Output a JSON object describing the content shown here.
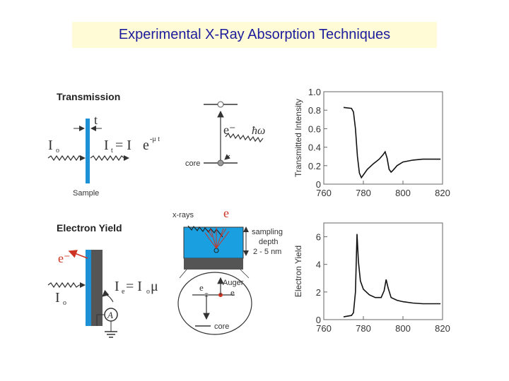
{
  "title": "Experimental X-Ray Absorption Techniques",
  "transmission": {
    "heading": "Transmission",
    "t_label": "t",
    "io_label": "I",
    "io_sub": "o",
    "it_formula_lhs": "I",
    "it_sub": "t",
    "it_formula_rhs": "= I",
    "it_formula_exp": "e",
    "it_formula_mu": "-μ t",
    "sample_label": "Sample",
    "electron_label": "e⁻",
    "photon_label": "ħω",
    "core_label": "core"
  },
  "electron_yield": {
    "heading": "Electron Yield",
    "electron_label": "e⁻",
    "io_label": "I",
    "io_sub": "o",
    "ie_lhs": "I",
    "ie_sub": "e",
    "ie_rhs": "= I",
    "ie_sub2": "o",
    "ie_mu": "μ",
    "ammeter_label": "A",
    "xrays_label": "x-rays",
    "e_top_label": "e",
    "sampling_label_1": "sampling",
    "sampling_label_2": "depth",
    "sampling_label_3": "2 - 5 nm",
    "auger_label": "Auger",
    "auger_e_label": "e",
    "core_label": "core"
  },
  "colors": {
    "title_text": "#1c1c9c",
    "title_bg": "#fffbd6",
    "sample_blue": "#1e90d6",
    "electron_red": "#cc3322",
    "water_blue": "#1a9fe0"
  },
  "chart_data": [
    {
      "type": "line",
      "ylabel": "Transmitted Intensity",
      "xlabel": "",
      "xlim": [
        760,
        820
      ],
      "ylim": [
        0,
        1.0
      ],
      "xticks": [
        760,
        780,
        800,
        820
      ],
      "yticks": [
        0,
        0.2,
        0.4,
        0.6,
        0.8,
        1.0
      ],
      "ytick_labels": [
        "0",
        "0.2",
        "0.4",
        "0.6",
        "0.8",
        "1.0"
      ],
      "x": [
        770,
        774,
        775,
        776,
        777,
        778,
        779,
        780,
        782,
        785,
        788,
        790,
        791,
        792,
        793,
        794,
        795,
        797,
        800,
        805,
        810,
        815,
        819
      ],
      "y": [
        0.83,
        0.82,
        0.78,
        0.6,
        0.3,
        0.12,
        0.07,
        0.1,
        0.16,
        0.22,
        0.27,
        0.32,
        0.35,
        0.28,
        0.16,
        0.13,
        0.15,
        0.2,
        0.24,
        0.26,
        0.27,
        0.27,
        0.27
      ]
    },
    {
      "type": "line",
      "ylabel": "Electron Yield",
      "xlabel": "",
      "xlim": [
        760,
        820
      ],
      "ylim": [
        0,
        7
      ],
      "xticks": [
        760,
        780,
        800,
        820
      ],
      "yticks": [
        0,
        2,
        4,
        6
      ],
      "ytick_labels": [
        "0",
        "2",
        "4",
        "6"
      ],
      "x": [
        770,
        774,
        775,
        776,
        776.8,
        777.5,
        778.5,
        780,
        783,
        786,
        789,
        790.5,
        791.5,
        792.5,
        794,
        797,
        800,
        805,
        810,
        815,
        819
      ],
      "y": [
        0.2,
        0.3,
        0.5,
        2.0,
        6.2,
        4.2,
        2.8,
        2.2,
        1.8,
        1.6,
        1.6,
        2.1,
        2.9,
        2.3,
        1.6,
        1.4,
        1.3,
        1.2,
        1.15,
        1.15,
        1.15
      ]
    }
  ]
}
